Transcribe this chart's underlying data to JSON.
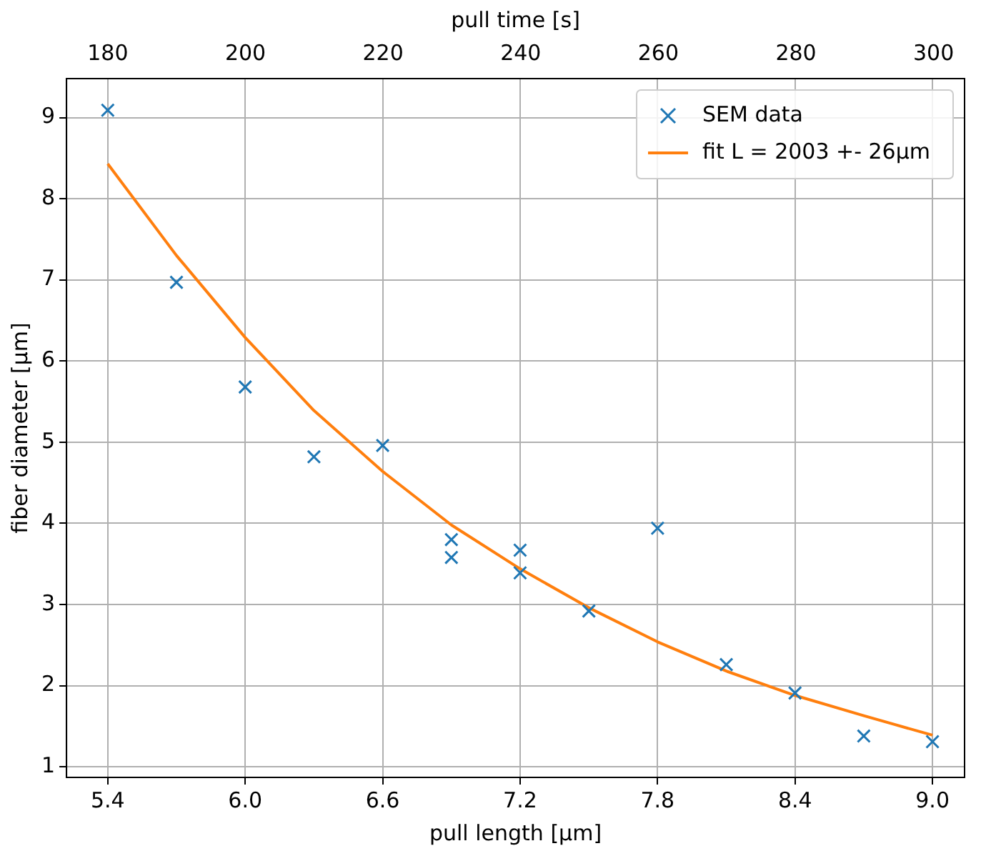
{
  "chart_data": {
    "type": "scatter",
    "xlabel": "pull length [µm]",
    "ylabel": "fiber diameter [µm]",
    "x2label": "pull time [s]",
    "xlim": [
      5.22,
      9.14
    ],
    "xticks": [
      {
        "value": 5.4,
        "label": "5.4"
      },
      {
        "value": 6,
        "label": "6.0"
      },
      {
        "value": 6.6,
        "label": "6.6"
      },
      {
        "value": 7.2,
        "label": "7.2"
      },
      {
        "value": 7.8,
        "label": "7.8"
      },
      {
        "value": 8.4,
        "label": "8.4"
      },
      {
        "value": 9,
        "label": "9.0"
      }
    ],
    "x2lim": [
      174,
      304.5
    ],
    "x2ticks": [
      180,
      200,
      220,
      240,
      260,
      280,
      300
    ],
    "ylim": [
      0.87,
      9.48
    ],
    "yticks": [
      1,
      2,
      3,
      4,
      5,
      6,
      7,
      8,
      9
    ],
    "grid": true,
    "legend": "top right",
    "series": [
      {
        "name": "SEM data",
        "type": "scatter",
        "color": "#1f77b4",
        "marker": "cross",
        "x": [
          5.4,
          5.7,
          6.0,
          6.3,
          6.6,
          6.9,
          6.9,
          7.2,
          7.2,
          7.5,
          7.8,
          8.1,
          8.4,
          8.7,
          9.0
        ],
        "values": [
          9.09,
          6.97,
          5.68,
          4.82,
          4.96,
          3.8,
          3.58,
          3.67,
          3.39,
          2.92,
          3.94,
          2.26,
          1.91,
          1.38,
          1.31
        ]
      },
      {
        "name": "fit L = 2003 +- 26µm",
        "type": "line",
        "color": "#ff7f0e",
        "marker": "none",
        "line_style": "solid",
        "x": [
          5.4,
          5.7,
          6.0,
          6.3,
          6.6,
          6.9,
          7.2,
          7.5,
          7.8,
          8.1,
          8.4,
          8.7,
          9.0
        ],
        "values": [
          8.43,
          7.3,
          6.29,
          5.39,
          4.64,
          3.98,
          3.44,
          2.96,
          2.54,
          2.18,
          1.88,
          1.63,
          1.39
        ]
      }
    ]
  }
}
